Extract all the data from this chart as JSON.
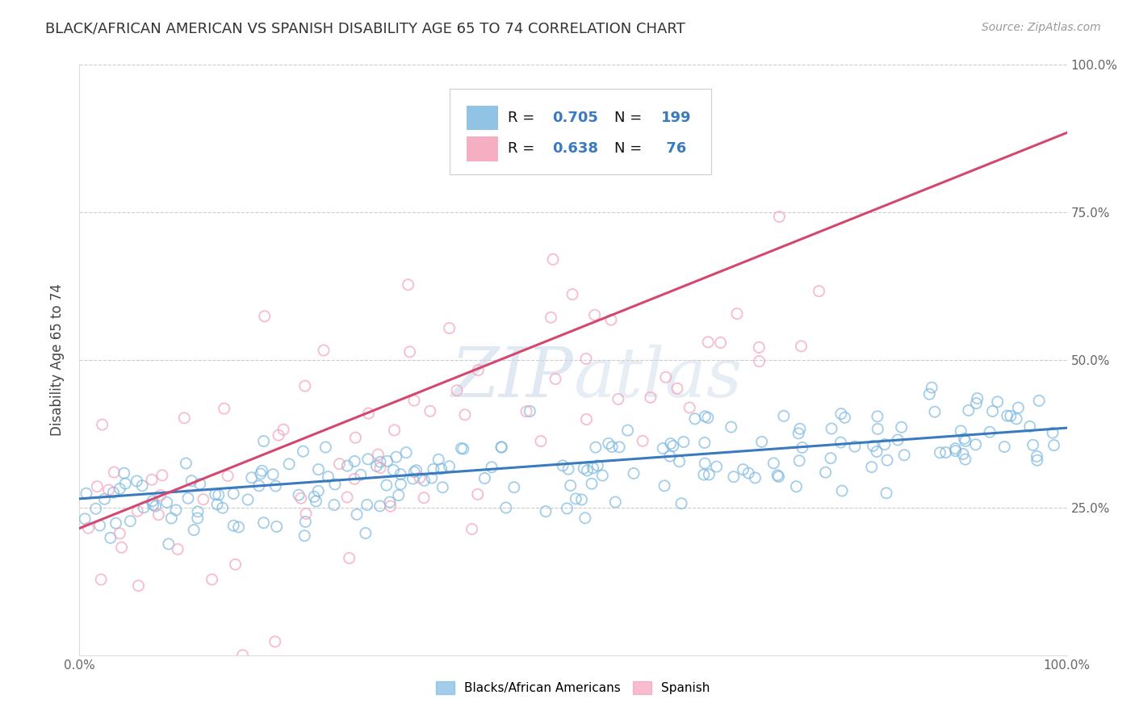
{
  "title": "BLACK/AFRICAN AMERICAN VS SPANISH DISABILITY AGE 65 TO 74 CORRELATION CHART",
  "source": "Source: ZipAtlas.com",
  "ylabel": "Disability Age 65 to 74",
  "x_min": 0.0,
  "x_max": 1.0,
  "y_min": 0.0,
  "y_max": 1.0,
  "blue_color": "#7db9e0",
  "pink_color": "#f4a0b8",
  "blue_line_color": "#3a7abf",
  "pink_line_color": "#d44870",
  "R_blue": 0.705,
  "N_blue": 199,
  "R_pink": 0.638,
  "N_pink": 76,
  "legend_labels": [
    "Blacks/African Americans",
    "Spanish"
  ],
  "watermark_text": "ZIPAtlas",
  "background_color": "#ffffff",
  "grid_color": "#cccccc",
  "blue_line_start_y": 0.265,
  "blue_line_end_y": 0.385,
  "pink_line_start_y": 0.215,
  "pink_line_end_y": 0.885
}
